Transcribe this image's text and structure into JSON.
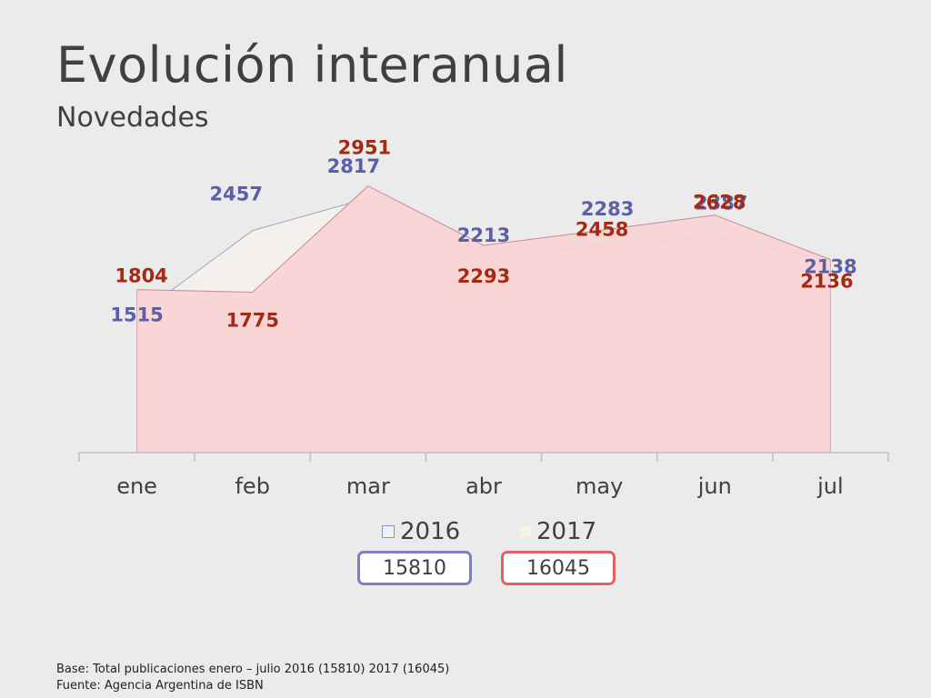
{
  "title": "Evolución interanual",
  "subtitle": "Novedades",
  "chart_data": {
    "type": "area",
    "categories": [
      "ene",
      "feb",
      "mar",
      "abr",
      "may",
      "jun",
      "jul"
    ],
    "series": [
      {
        "name": "2016",
        "values": [
          1515,
          2457,
          2817,
          2213,
          2283,
          2387,
          2138
        ],
        "color": "#5a5fa8"
      },
      {
        "name": "2017",
        "values": [
          1804,
          1775,
          2951,
          2293,
          2458,
          2628,
          2136
        ],
        "color": "#a52a14"
      }
    ],
    "ylim": [
      0,
      3500
    ],
    "grid": false,
    "legend": "bottom"
  },
  "legend": {
    "label_2016": "2016",
    "label_2017": "2017",
    "total_2016": "15810",
    "total_2017": "16045"
  },
  "footnote": {
    "base": "Base: Total publicaciones  enero – julio 2016 (15810) 2017 (16045)",
    "source": "Fuente:  Agencia Argentina de ISBN"
  },
  "colors": {
    "area_2017_fill": "#f8d3d4",
    "area_2016_fill": "#f4f0ee",
    "axis": "#bfbfbf",
    "text": "#404040"
  }
}
